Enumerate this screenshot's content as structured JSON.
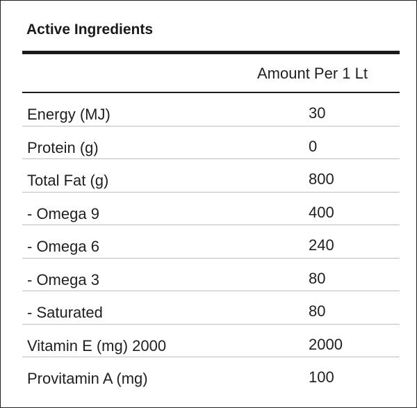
{
  "title": "Active Ingredients",
  "column_header": "Amount Per 1 Lt",
  "rows": [
    {
      "name": "Energy (MJ)",
      "value": "30"
    },
    {
      "name": "Protein (g)",
      "value": "0"
    },
    {
      "name": "Total Fat (g)",
      "value": "800"
    },
    {
      "name": "- Omega 9",
      "value": "400"
    },
    {
      "name": "- Omega 6",
      "value": "240"
    },
    {
      "name": "- Omega 3",
      "value": "80"
    },
    {
      "name": "- Saturated",
      "value": "80"
    },
    {
      "name": "Vitamin E (mg) 2000",
      "value": "2000"
    },
    {
      "name": "Provitamin A (mg)",
      "value": "100"
    }
  ]
}
